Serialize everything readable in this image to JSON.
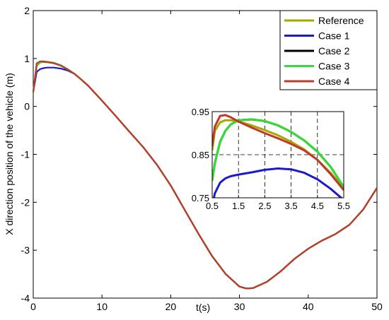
{
  "chart_data": [
    {
      "type": "line",
      "xlabel": "t(s)",
      "ylabel": "X direction position of the vehicle (m)",
      "xlim": [
        0,
        50
      ],
      "ylim": [
        -4,
        2
      ],
      "xticks": [
        "0",
        "10",
        "20",
        "30",
        "40",
        "50"
      ],
      "yticks": [
        "-4",
        "-3",
        "-2",
        "-1",
        "0",
        "1",
        "2"
      ],
      "grid": false,
      "legend_position": "top-right",
      "x": [
        0,
        0.5,
        1,
        1.5,
        2,
        3,
        4,
        5,
        6,
        7,
        8,
        10,
        12,
        14,
        16,
        18,
        20,
        22,
        24,
        26,
        28,
        30,
        31,
        32,
        34,
        36,
        38,
        40,
        42,
        44,
        46,
        48,
        50
      ],
      "series": [
        {
          "name": "Reference",
          "color": "#a8a800",
          "values": [
            0.3,
            0.88,
            0.93,
            0.93,
            0.92,
            0.9,
            0.85,
            0.77,
            0.68,
            0.56,
            0.43,
            0.12,
            -0.2,
            -0.53,
            -0.85,
            -1.22,
            -1.65,
            -2.15,
            -2.65,
            -3.12,
            -3.5,
            -3.76,
            -3.8,
            -3.79,
            -3.66,
            -3.44,
            -3.18,
            -2.97,
            -2.8,
            -2.66,
            -2.47,
            -2.15,
            -1.7
          ]
        },
        {
          "name": "Case 1",
          "color": "#1a1acc",
          "values": [
            0.3,
            0.72,
            0.78,
            0.8,
            0.81,
            0.81,
            0.79,
            0.75,
            0.68,
            0.56,
            0.43,
            0.12,
            -0.2,
            -0.53,
            -0.85,
            -1.22,
            -1.65,
            -2.15,
            -2.65,
            -3.12,
            -3.5,
            -3.76,
            -3.8,
            -3.79,
            -3.66,
            -3.44,
            -3.18,
            -2.97,
            -2.8,
            -2.66,
            -2.47,
            -2.15,
            -1.7
          ]
        },
        {
          "name": "Case 2",
          "color": "#000000",
          "values": [
            0.3,
            0.85,
            0.92,
            0.93,
            0.93,
            0.91,
            0.86,
            0.78,
            0.68,
            0.56,
            0.43,
            0.12,
            -0.2,
            -0.53,
            -0.85,
            -1.22,
            -1.65,
            -2.15,
            -2.65,
            -3.12,
            -3.5,
            -3.76,
            -3.8,
            -3.79,
            -3.66,
            -3.44,
            -3.18,
            -2.97,
            -2.8,
            -2.66,
            -2.47,
            -2.15,
            -1.7
          ]
        },
        {
          "name": "Case 3",
          "color": "#33dd33",
          "values": [
            0.3,
            0.85,
            0.92,
            0.93,
            0.93,
            0.91,
            0.86,
            0.78,
            0.68,
            0.56,
            0.43,
            0.12,
            -0.2,
            -0.53,
            -0.85,
            -1.22,
            -1.65,
            -2.15,
            -2.65,
            -3.12,
            -3.5,
            -3.76,
            -3.8,
            -3.79,
            -3.66,
            -3.44,
            -3.18,
            -2.97,
            -2.8,
            -2.66,
            -2.47,
            -2.15,
            -1.7
          ]
        },
        {
          "name": "Case 4",
          "color": "#c0392b",
          "values": [
            0.3,
            0.9,
            0.94,
            0.94,
            0.93,
            0.9,
            0.85,
            0.77,
            0.68,
            0.56,
            0.43,
            0.12,
            -0.2,
            -0.53,
            -0.85,
            -1.22,
            -1.65,
            -2.15,
            -2.65,
            -3.12,
            -3.5,
            -3.76,
            -3.8,
            -3.79,
            -3.66,
            -3.44,
            -3.18,
            -2.97,
            -2.8,
            -2.66,
            -2.47,
            -2.15,
            -1.7
          ]
        }
      ]
    },
    {
      "type": "line",
      "role": "inset",
      "xlim": [
        0.5,
        5.5
      ],
      "ylim": [
        0.75,
        0.95
      ],
      "xticks": [
        "0.5",
        "1.5",
        "2.5",
        "3.5",
        "4.5",
        "5.5"
      ],
      "yticks": [
        "0.75",
        "0.85",
        "0.95"
      ],
      "grid": true,
      "x": [
        0.5,
        0.6,
        0.8,
        1.0,
        1.2,
        1.5,
        2.0,
        2.5,
        3.0,
        3.5,
        4.0,
        4.5,
        5.0,
        5.5
      ],
      "series": [
        {
          "name": "Reference",
          "color": "#a8a800",
          "values": [
            0.86,
            0.905,
            0.925,
            0.93,
            0.93,
            0.927,
            0.918,
            0.907,
            0.895,
            0.88,
            0.862,
            0.838,
            0.808,
            0.772
          ]
        },
        {
          "name": "Case 1",
          "color": "#1a1acc",
          "values": [
            0.73,
            0.76,
            0.785,
            0.795,
            0.8,
            0.804,
            0.809,
            0.815,
            0.818,
            0.816,
            0.808,
            0.793,
            0.771,
            0.745
          ]
        },
        {
          "name": "Case 2",
          "color": "#000000",
          "values": [
            0.79,
            0.83,
            0.88,
            0.905,
            0.92,
            0.93,
            0.932,
            0.928,
            0.918,
            0.903,
            0.883,
            0.857,
            0.822,
            0.775
          ]
        },
        {
          "name": "Case 3",
          "color": "#33dd33",
          "values": [
            0.79,
            0.83,
            0.88,
            0.905,
            0.92,
            0.93,
            0.932,
            0.928,
            0.918,
            0.903,
            0.883,
            0.857,
            0.822,
            0.775
          ]
        },
        {
          "name": "Case 4",
          "color": "#c0392b",
          "values": [
            0.87,
            0.915,
            0.94,
            0.942,
            0.937,
            0.927,
            0.913,
            0.9,
            0.888,
            0.875,
            0.86,
            0.838,
            0.805,
            0.768
          ]
        }
      ]
    }
  ]
}
